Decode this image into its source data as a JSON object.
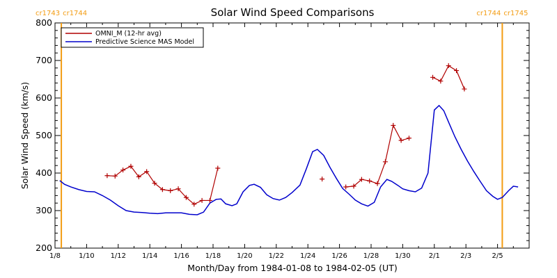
{
  "chart_data": {
    "type": "line",
    "title": "Solar Wind Speed Comparisons",
    "xlabel": "Month/Day from 1984-01-08 to 1984-02-05 (UT)",
    "ylabel": "Solar Wind Speed (km/s)",
    "xlim": [
      0,
      30
    ],
    "ylim": [
      200,
      800
    ],
    "x_ticks": [
      {
        "x": 0,
        "label": "1/8"
      },
      {
        "x": 2,
        "label": "1/10"
      },
      {
        "x": 4,
        "label": "1/12"
      },
      {
        "x": 6,
        "label": "1/14"
      },
      {
        "x": 8,
        "label": "1/16"
      },
      {
        "x": 10,
        "label": "1/18"
      },
      {
        "x": 12,
        "label": "1/20"
      },
      {
        "x": 14,
        "label": "1/22"
      },
      {
        "x": 16,
        "label": "1/24"
      },
      {
        "x": 18,
        "label": "1/26"
      },
      {
        "x": 20,
        "label": "1/28"
      },
      {
        "x": 22,
        "label": "1/30"
      },
      {
        "x": 24,
        "label": "2/1"
      },
      {
        "x": 26,
        "label": "2/3"
      },
      {
        "x": 28,
        "label": "2/5"
      }
    ],
    "y_ticks": [
      200,
      300,
      400,
      500,
      600,
      700,
      800
    ],
    "legend_position": "top-left",
    "carrington_markers": [
      {
        "x": 0.4,
        "left_label": "cr1743",
        "right_label": "cr1744"
      },
      {
        "x": 28.3,
        "left_label": "cr1744",
        "right_label": "cr1745"
      }
    ],
    "series": [
      {
        "name": "OMNI_M (12-hr avg)",
        "color": "#b00000",
        "marker": "+",
        "segments": [
          [
            [
              3.3,
              393
            ],
            [
              3.8,
              392
            ],
            [
              4.3,
              408
            ],
            [
              4.8,
              418
            ],
            [
              5.3,
              390
            ],
            [
              5.8,
              404
            ],
            [
              6.3,
              373
            ],
            [
              6.8,
              356
            ],
            [
              7.3,
              353
            ],
            [
              7.8,
              358
            ],
            [
              8.3,
              335
            ],
            [
              8.8,
              317
            ],
            [
              9.3,
              327
            ],
            [
              9.8,
              327
            ],
            [
              10.3,
              413
            ]
          ],
          [
            [
              16.9,
              384
            ]
          ],
          [
            [
              18.4,
              363
            ],
            [
              18.9,
              365
            ],
            [
              19.4,
              383
            ],
            [
              19.9,
              379
            ],
            [
              20.4,
              372
            ],
            [
              20.9,
              430
            ],
            [
              21.4,
              527
            ],
            [
              21.9,
              487
            ],
            [
              22.4,
              493
            ]
          ],
          [
            [
              23.9,
              655
            ],
            [
              24.4,
              645
            ],
            [
              24.9,
              686
            ],
            [
              25.4,
              673
            ],
            [
              25.9,
              624
            ]
          ]
        ]
      },
      {
        "name": "Predictive Science MAS Model",
        "color": "#0000cc",
        "points": [
          [
            0.3,
            380
          ],
          [
            0.6,
            370
          ],
          [
            1.0,
            363
          ],
          [
            1.5,
            356
          ],
          [
            2.0,
            351
          ],
          [
            2.5,
            350
          ],
          [
            3.0,
            340
          ],
          [
            3.5,
            328
          ],
          [
            4.0,
            313
          ],
          [
            4.5,
            300
          ],
          [
            5.0,
            296
          ],
          [
            5.5,
            295
          ],
          [
            6.0,
            293
          ],
          [
            6.5,
            292
          ],
          [
            7.0,
            294
          ],
          [
            7.5,
            294
          ],
          [
            8.0,
            294
          ],
          [
            8.5,
            290
          ],
          [
            9.0,
            289
          ],
          [
            9.4,
            296
          ],
          [
            9.8,
            320
          ],
          [
            10.2,
            330
          ],
          [
            10.5,
            331
          ],
          [
            10.8,
            318
          ],
          [
            11.2,
            313
          ],
          [
            11.5,
            318
          ],
          [
            11.9,
            350
          ],
          [
            12.3,
            367
          ],
          [
            12.6,
            370
          ],
          [
            13.0,
            362
          ],
          [
            13.4,
            342
          ],
          [
            13.8,
            332
          ],
          [
            14.2,
            328
          ],
          [
            14.6,
            335
          ],
          [
            15.0,
            348
          ],
          [
            15.5,
            368
          ],
          [
            15.9,
            411
          ],
          [
            16.3,
            457
          ],
          [
            16.6,
            463
          ],
          [
            17.0,
            447
          ],
          [
            17.4,
            415
          ],
          [
            17.8,
            386
          ],
          [
            18.2,
            359
          ],
          [
            18.6,
            344
          ],
          [
            19.0,
            328
          ],
          [
            19.4,
            318
          ],
          [
            19.8,
            312
          ],
          [
            20.2,
            322
          ],
          [
            20.6,
            363
          ],
          [
            21.0,
            383
          ],
          [
            21.3,
            378
          ],
          [
            21.7,
            367
          ],
          [
            22.0,
            358
          ],
          [
            22.4,
            353
          ],
          [
            22.8,
            350
          ],
          [
            23.2,
            360
          ],
          [
            23.6,
            400
          ],
          [
            24.0,
            568
          ],
          [
            24.3,
            580
          ],
          [
            24.6,
            566
          ],
          [
            24.9,
            536
          ],
          [
            25.3,
            497
          ],
          [
            25.7,
            463
          ],
          [
            26.1,
            432
          ],
          [
            26.5,
            404
          ],
          [
            26.9,
            378
          ],
          [
            27.3,
            353
          ],
          [
            27.7,
            338
          ],
          [
            28.0,
            330
          ],
          [
            28.3,
            335
          ],
          [
            28.7,
            353
          ],
          [
            29.0,
            365
          ],
          [
            29.3,
            363
          ]
        ]
      }
    ]
  }
}
